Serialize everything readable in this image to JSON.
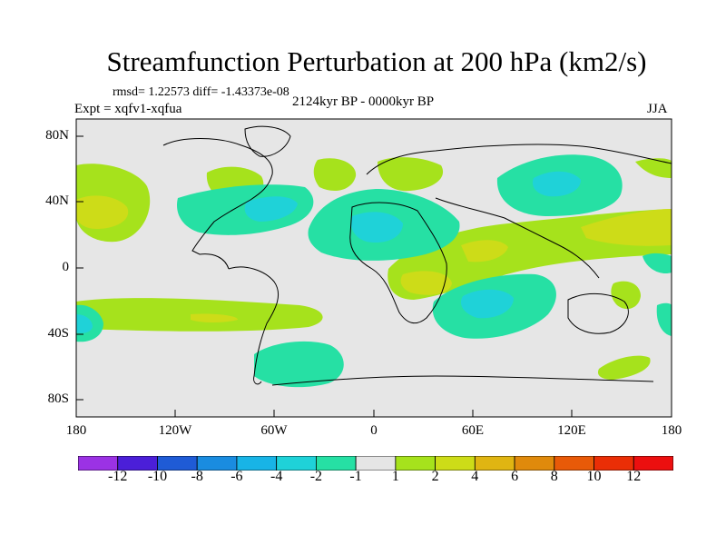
{
  "header": {
    "title": "Streamfunction Perturbation at 200 hPa (km2/s)",
    "stats": "rmsd= 1.22573 diff= -1.43373e-08",
    "subtitle": "2124kyr BP - 0000kyr BP",
    "experiment": "Expt = xqfv1-xqfua",
    "season": "JJA"
  },
  "axes": {
    "y_ticks": [
      "80N",
      "40N",
      "0",
      "40S",
      "80S"
    ],
    "x_ticks": [
      "180",
      "120W",
      "60W",
      "0",
      "60E",
      "120E",
      "180"
    ]
  },
  "colorbar": {
    "labels": [
      "-12",
      "-10",
      "-8",
      "-6",
      "-4",
      "-2",
      "-1",
      "1",
      "2",
      "4",
      "6",
      "8",
      "10",
      "12"
    ],
    "colors": [
      "#9b32e4",
      "#4b1fd8",
      "#1f5bd6",
      "#1a8ce0",
      "#18b4e6",
      "#1fd2d8",
      "#26e0a4",
      "#e5e5e5",
      "#a6e21c",
      "#cddc18",
      "#e0b512",
      "#e08a0c",
      "#e85a08",
      "#ea2e06",
      "#ec0f0f"
    ]
  },
  "colors": {
    "background": "#e6e6e6",
    "coast": "#000000"
  }
}
